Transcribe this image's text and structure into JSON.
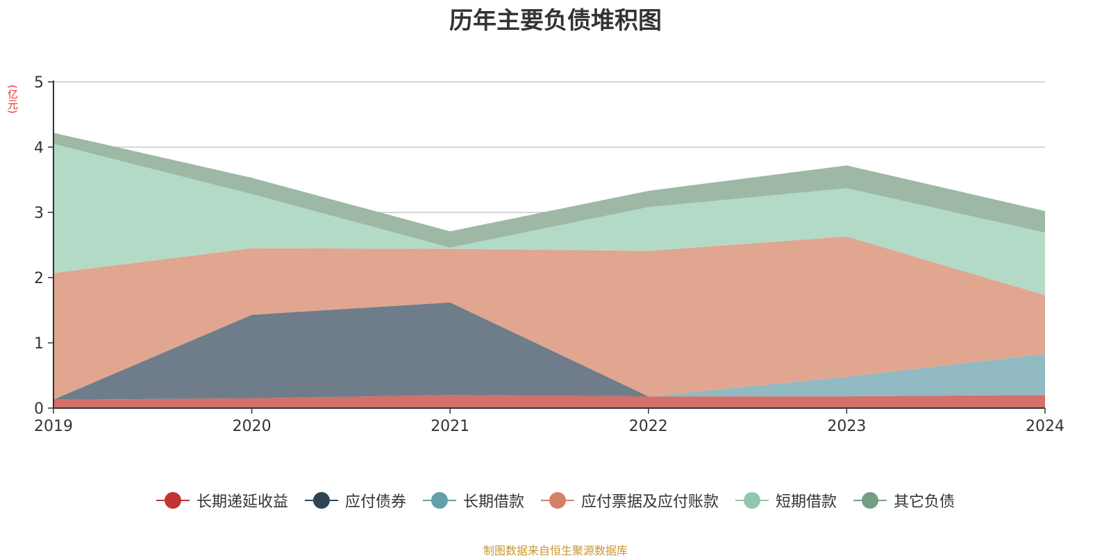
{
  "chart_data": {
    "type": "area",
    "stacked": true,
    "title": "历年主要负债堆积图",
    "ylabel": "(亿元)",
    "xlabel": "",
    "ylim": [
      0,
      5
    ],
    "yticks": [
      0,
      1,
      2,
      3,
      4,
      5
    ],
    "grid": true,
    "legend_position": "bottom",
    "categories": [
      "2019",
      "2020",
      "2021",
      "2022",
      "2023",
      "2024"
    ],
    "series": [
      {
        "name": "长期递延收益",
        "color": "#c23531",
        "fill": "#d46f6a",
        "values": [
          0.13,
          0.15,
          0.2,
          0.18,
          0.18,
          0.2
        ]
      },
      {
        "name": "应付债券",
        "color": "#2f4554",
        "fill": "#6e7d89",
        "values": [
          0.0,
          1.28,
          1.42,
          0.0,
          0.0,
          0.0
        ]
      },
      {
        "name": "长期借款",
        "color": "#61a0a8",
        "fill": "#91bac2",
        "values": [
          0.0,
          0.0,
          0.0,
          0.0,
          0.3,
          0.63
        ]
      },
      {
        "name": "应付票据及应付账款",
        "color": "#d48265",
        "fill": "#e0a690",
        "values": [
          1.94,
          1.02,
          0.82,
          2.23,
          2.15,
          0.9
        ]
      },
      {
        "name": "短期借款",
        "color": "#91c7ae",
        "fill": "#b2dac7",
        "values": [
          1.98,
          0.83,
          0.02,
          0.67,
          0.74,
          0.96
        ]
      },
      {
        "name": "其它负债",
        "color": "#749f83",
        "fill": "#9db9a6",
        "values": [
          0.17,
          0.25,
          0.25,
          0.25,
          0.35,
          0.33
        ]
      }
    ]
  },
  "source_note": "制图数据来自恒生聚源数据库"
}
